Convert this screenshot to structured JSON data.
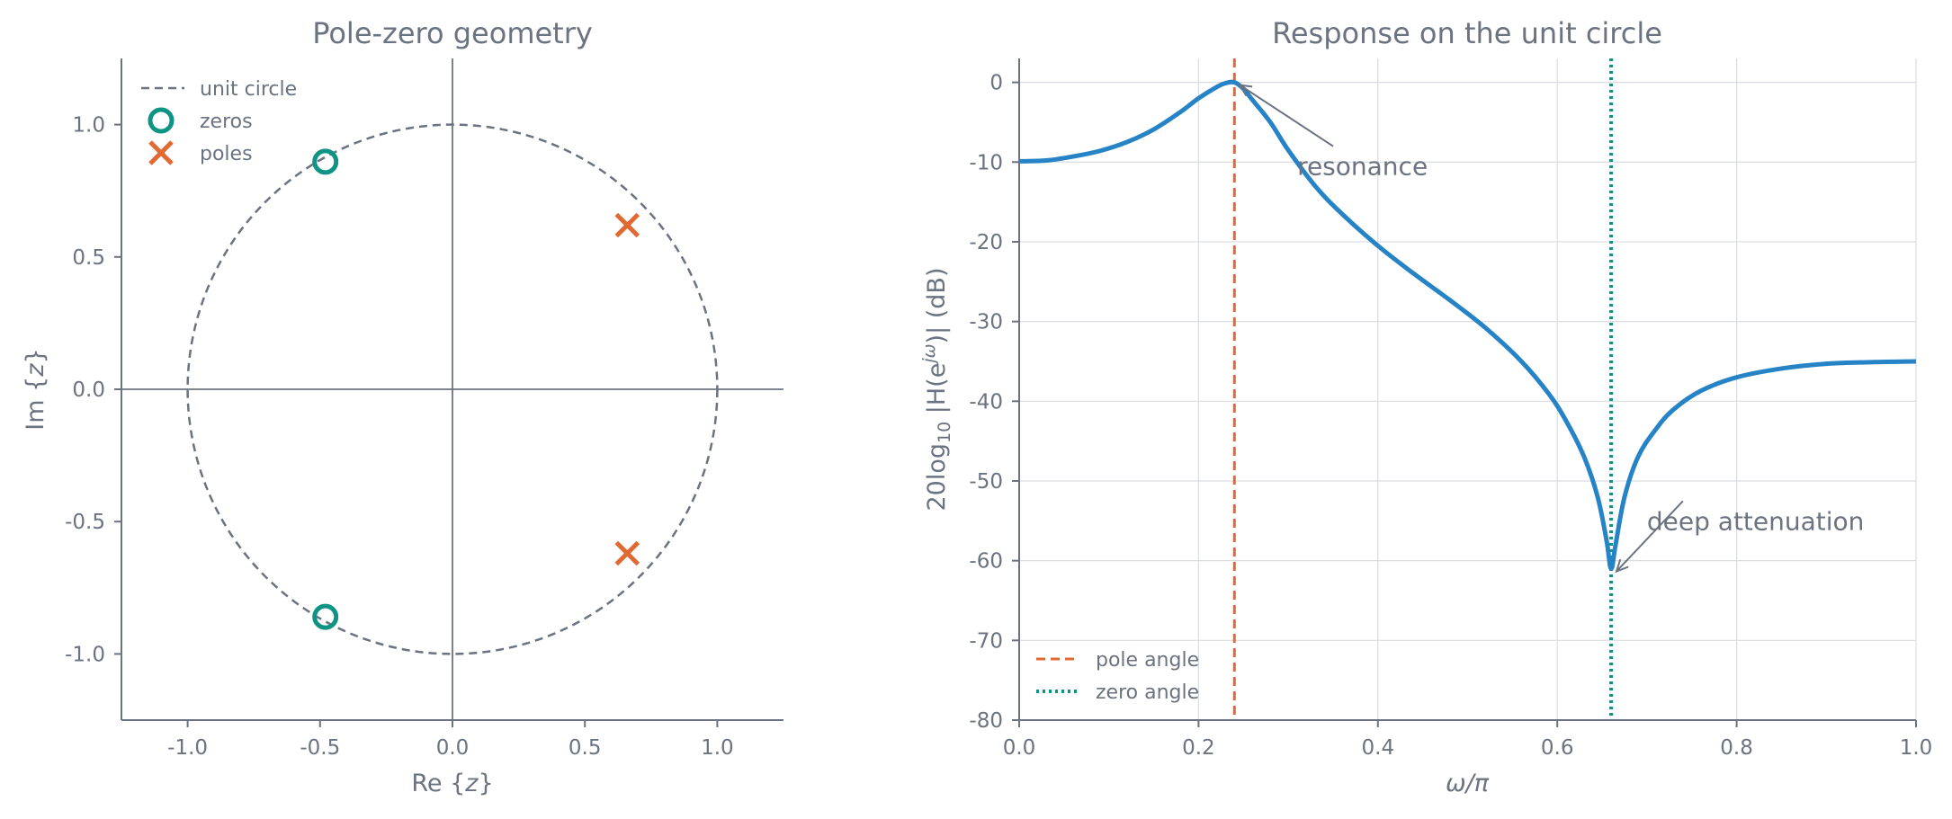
{
  "chart_data": [
    {
      "type": "scatter",
      "title": "Pole-zero geometry",
      "xlabel": "Re{z}",
      "ylabel": "Im{z}",
      "xlim": [
        -1.25,
        1.25
      ],
      "ylim": [
        -1.25,
        1.25
      ],
      "xticks": [
        -1.0,
        -0.5,
        0.0,
        0.5,
        1.0
      ],
      "yticks": [
        -1.0,
        -0.5,
        0.0,
        0.5,
        1.0
      ],
      "xtick_labels": [
        "-1.0",
        "-0.5",
        "0.0",
        "0.5",
        "1.0"
      ],
      "ytick_labels": [
        "-1.0",
        "-0.5",
        "0.0",
        "0.5",
        "1.0"
      ],
      "grid": false,
      "legend": {
        "location": "upper-left",
        "entries": [
          "unit circle",
          "zeros",
          "poles"
        ]
      },
      "unit_circle": {
        "radius": 1.0,
        "style": "dashed",
        "color": "#6b7280"
      },
      "series": [
        {
          "name": "zeros",
          "marker": "circle",
          "color": "#0e9484",
          "points": [
            {
              "x": -0.48,
              "y": 0.86
            },
            {
              "x": -0.48,
              "y": -0.86
            }
          ]
        },
        {
          "name": "poles",
          "marker": "x",
          "color": "#e06a32",
          "points": [
            {
              "x": 0.66,
              "y": 0.62
            },
            {
              "x": 0.66,
              "y": -0.62
            }
          ]
        }
      ]
    },
    {
      "type": "line",
      "title": "Response on the unit circle",
      "xlabel": "ω/π",
      "ylabel": "20log₁₀ |H(e^{jω})| (dB)",
      "ylabel_parts": {
        "pre": "20log",
        "sub": "10",
        "mid": " |H(e",
        "sup": "jω",
        "post": ")| (dB)"
      },
      "xlim": [
        0.0,
        1.0
      ],
      "ylim": [
        -80,
        3
      ],
      "xticks": [
        0.0,
        0.2,
        0.4,
        0.6,
        0.8,
        1.0
      ],
      "yticks": [
        0,
        -10,
        -20,
        -30,
        -40,
        -50,
        -60,
        -70,
        -80
      ],
      "xtick_labels": [
        "0.0",
        "0.2",
        "0.4",
        "0.6",
        "0.8",
        "1.0"
      ],
      "ytick_labels": [
        "0",
        "-10",
        "-20",
        "-30",
        "-40",
        "-50",
        "-60",
        "-70",
        "-80"
      ],
      "grid": true,
      "legend": {
        "location": "lower-left",
        "entries": [
          "pole angle",
          "zero angle"
        ]
      },
      "series": [
        {
          "name": "",
          "color": "#2683c6",
          "x": [
            0.0,
            0.03,
            0.06,
            0.09,
            0.12,
            0.15,
            0.18,
            0.2,
            0.22,
            0.23,
            0.24,
            0.25,
            0.26,
            0.28,
            0.3,
            0.33,
            0.36,
            0.4,
            0.44,
            0.48,
            0.52,
            0.56,
            0.59,
            0.61,
            0.63,
            0.645,
            0.655,
            0.66,
            0.665,
            0.675,
            0.69,
            0.71,
            0.73,
            0.76,
            0.8,
            0.85,
            0.9,
            0.95,
            1.0
          ],
          "y": [
            -9.9,
            -9.8,
            -9.3,
            -8.6,
            -7.5,
            -5.9,
            -3.7,
            -2.0,
            -0.6,
            -0.1,
            0.0,
            -0.8,
            -2.2,
            -5.0,
            -8.5,
            -13.0,
            -16.5,
            -20.5,
            -24.0,
            -27.3,
            -30.8,
            -35.0,
            -39.0,
            -42.5,
            -47.0,
            -52.0,
            -57.5,
            -61.0,
            -58.0,
            -52.0,
            -47.0,
            -43.5,
            -41.0,
            -38.7,
            -37.0,
            -35.9,
            -35.3,
            -35.1,
            -35.0
          ]
        }
      ],
      "markers": [
        {
          "name": "pole angle",
          "x": 0.24,
          "color": "#e06a32",
          "style": "dashed"
        },
        {
          "name": "zero angle",
          "x": 0.66,
          "color": "#0e9484",
          "style": "dotted"
        }
      ],
      "annotations": [
        {
          "text": "resonance",
          "target": {
            "x": 0.24,
            "y": 0.0
          },
          "label_at": {
            "x": 0.31,
            "y": -10.5
          }
        },
        {
          "text": "deep attenuation",
          "target": {
            "x": 0.66,
            "y": -61.0
          },
          "label_at": {
            "x": 0.7,
            "y": -55.0
          }
        }
      ]
    }
  ]
}
